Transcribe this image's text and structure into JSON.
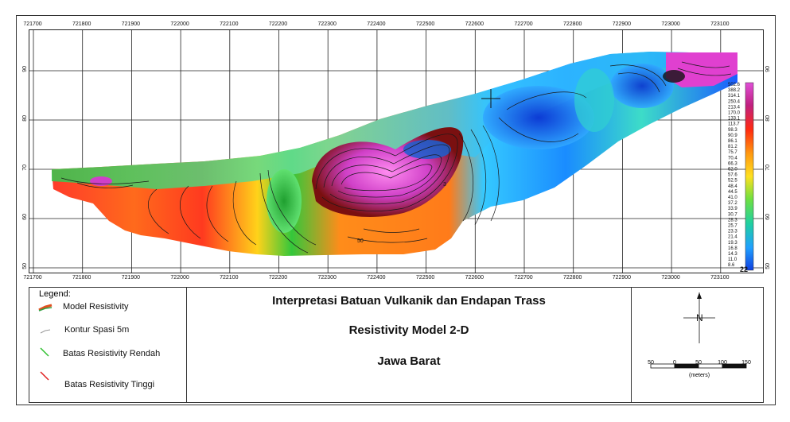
{
  "map": {
    "x_ticks": [
      "721700",
      "721800",
      "721900",
      "722000",
      "722100",
      "722200",
      "722300",
      "722400",
      "722500",
      "722600",
      "722700",
      "722800",
      "722900",
      "723000",
      "723100"
    ],
    "y_ticks": [
      "90",
      "80",
      "70",
      "60",
      "50"
    ],
    "contour_labels": [
      "3",
      "50",
      "50"
    ],
    "colorbar_labels": [
      "502.6",
      "388.2",
      "314.1",
      "250.4",
      "213.4",
      "170.0",
      "133.1",
      "113.7",
      "98.3",
      "90.9",
      "86.1",
      "81.2",
      "75.7",
      "70.4",
      "66.3",
      "62.0",
      "57.6",
      "52.5",
      "48.4",
      "44.5",
      "41.0",
      "37.2",
      "33.9",
      "30.7",
      "28.3",
      "25.7",
      "23.3",
      "21.4",
      "19.3",
      "16.8",
      "14.3",
      "11.0",
      "8.6"
    ],
    "colorbar_bottom": "22",
    "colors": {
      "high": "#e040d0",
      "mid_high": "#ff4b1f",
      "mid": "#ffd21a",
      "mid_low": "#34c73b",
      "low": "#1a5cff"
    }
  },
  "legend": {
    "title": "Legend:",
    "items": [
      "Model Resistivity",
      "Kontur Spasi 5m",
      "Batas Resistivity Rendah",
      "Batas Resistivity Tinggi"
    ]
  },
  "titles": {
    "line1": "Interpretasi Batuan Vulkanik dan Endapan Trass",
    "line2": "Resistivity Model 2-D",
    "line3": "Jawa Barat"
  },
  "north": {
    "label": "N"
  },
  "scale": {
    "labels": [
      "50",
      "0",
      "50",
      "100",
      "150"
    ],
    "units": "(meters)"
  }
}
